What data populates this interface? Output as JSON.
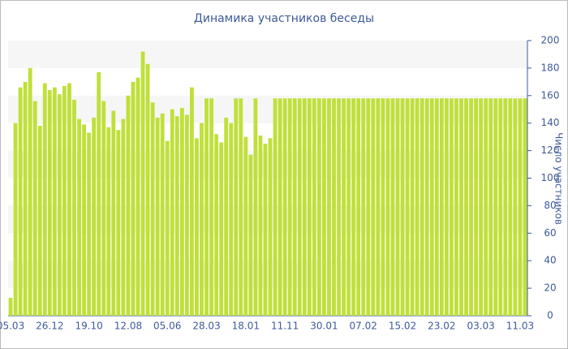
{
  "chart_data": {
    "type": "bar",
    "title": "Динамика участников беседы",
    "y_label": "Число участников",
    "categories": [
      "05.03",
      null,
      null,
      null,
      null,
      null,
      null,
      null,
      "26.12",
      null,
      null,
      null,
      null,
      null,
      null,
      null,
      "19.10",
      null,
      null,
      null,
      null,
      null,
      null,
      null,
      "12.08",
      null,
      null,
      null,
      null,
      null,
      null,
      null,
      "05.06",
      null,
      null,
      null,
      null,
      null,
      null,
      null,
      "28.03",
      null,
      null,
      null,
      null,
      null,
      null,
      null,
      "18.01",
      null,
      null,
      null,
      null,
      null,
      null,
      null,
      "11.11",
      null,
      null,
      null,
      null,
      null,
      null,
      null,
      "30.01",
      null,
      null,
      null,
      null,
      null,
      null,
      null,
      "07.02",
      null,
      null,
      null,
      null,
      null,
      null,
      null,
      "15.02",
      null,
      null,
      null,
      null,
      null,
      null,
      null,
      "23.02",
      null,
      null,
      null,
      null,
      null,
      null,
      null,
      "03.03",
      null,
      null,
      null,
      null,
      null,
      null,
      null,
      "11.03",
      null
    ],
    "values": [
      13,
      140,
      166,
      170,
      180,
      156,
      138,
      169,
      164,
      166,
      161,
      167,
      169,
      157,
      143,
      139,
      133,
      144,
      177,
      156,
      137,
      149,
      135,
      143,
      160,
      170,
      173,
      192,
      183,
      155,
      144,
      147,
      127,
      150,
      145,
      151,
      146,
      166,
      129,
      140,
      158,
      158,
      132,
      126,
      144,
      140,
      158,
      158,
      130,
      117,
      158,
      131,
      125,
      129,
      158,
      158,
      158,
      158,
      158,
      158,
      158,
      158,
      158,
      158,
      158,
      158,
      158,
      158,
      158,
      158,
      158,
      158,
      158,
      158,
      158,
      158,
      158,
      158,
      158,
      158,
      158,
      158,
      158,
      158,
      158,
      158,
      158,
      158,
      158,
      158,
      158,
      158,
      158,
      158,
      158,
      158,
      158,
      158,
      158,
      158,
      158,
      158,
      158,
      158,
      158,
      158
    ],
    "color": "#bfe03a",
    "ylim": [
      0,
      200
    ],
    "yticks": [
      0,
      20,
      40,
      60,
      80,
      100,
      120,
      140,
      160,
      180,
      200
    ],
    "grid": true
  }
}
